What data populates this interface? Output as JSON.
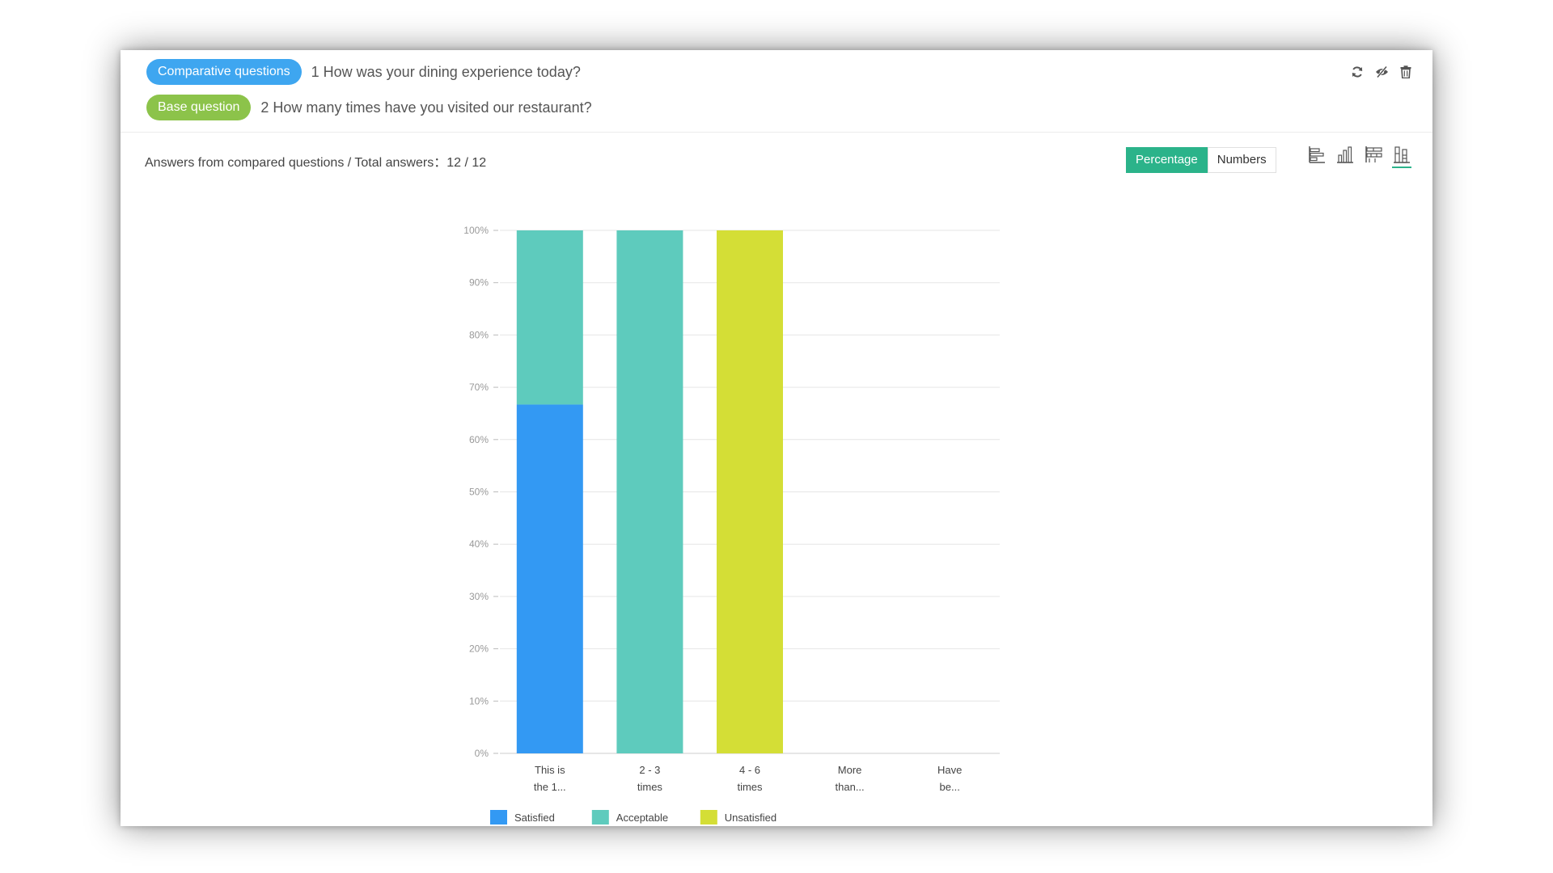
{
  "questions": {
    "compare_tag": "Comparative questions",
    "compare_text": "1 How was your dining experience today?",
    "base_tag": "Base question",
    "base_text": "2 How many times have you visited our restaurant?"
  },
  "summary": {
    "text": "Answers from compared questions / Total answers：12 / 12"
  },
  "toggle": {
    "percentage": "Percentage",
    "numbers": "Numbers",
    "active": "percentage"
  },
  "actions": {
    "icons": [
      "refresh-icon",
      "hide-icon",
      "trash-icon"
    ]
  },
  "chart_types": {
    "icons": [
      "horizontal-bar-chart-icon",
      "vertical-bar-chart-icon",
      "stacked-horizontal-chart-icon",
      "stacked-vertical-chart-icon"
    ],
    "active": "stacked-vertical-chart-icon"
  },
  "colors": {
    "accent": "#2bb38a",
    "comparative_pill": "#3ea6f0",
    "base_pill": "#8cc34a"
  },
  "chart_data": {
    "type": "bar",
    "stacked": true,
    "categories": [
      [
        "This is",
        "the 1..."
      ],
      [
        "2 - 3",
        "times"
      ],
      [
        "4 - 6",
        "times"
      ],
      [
        "More",
        "than..."
      ],
      [
        "Have",
        "be..."
      ]
    ],
    "series": [
      {
        "name": "Satisfied",
        "color": "#3399f3",
        "values": [
          66.7,
          0,
          0,
          0,
          0
        ]
      },
      {
        "name": "Acceptable",
        "color": "#5ecbbd",
        "values": [
          33.3,
          100,
          0,
          0,
          0
        ]
      },
      {
        "name": "Unsatisfied",
        "color": "#d4de36",
        "values": [
          0,
          0,
          100,
          0,
          0
        ]
      }
    ],
    "ylim": [
      0,
      100
    ],
    "yticks": [
      "0%",
      "10%",
      "20%",
      "30%",
      "40%",
      "50%",
      "60%",
      "70%",
      "80%",
      "90%",
      "100%"
    ],
    "grid": true,
    "legend": "bottom"
  }
}
